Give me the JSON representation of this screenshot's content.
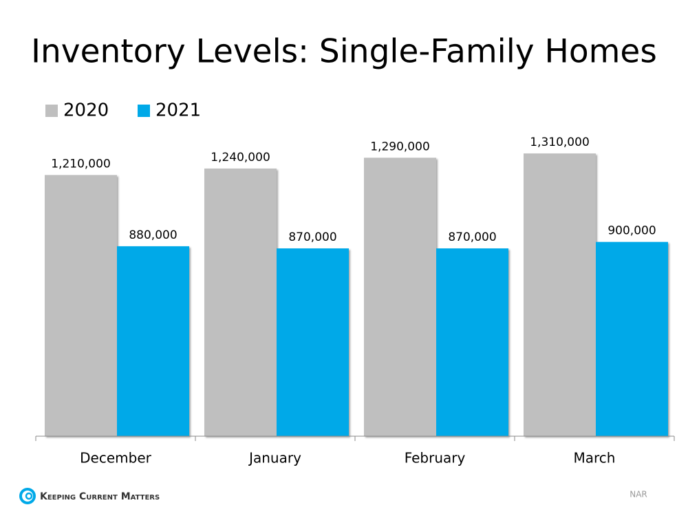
{
  "chart_data": {
    "type": "bar",
    "title": "Inventory Levels: Single-Family Homes",
    "categories": [
      "December",
      "January",
      "February",
      "March"
    ],
    "series": [
      {
        "name": "2020",
        "color": "#bfbfbf",
        "values": [
          1210000,
          1240000,
          1290000,
          1310000
        ],
        "value_labels": [
          "1,210,000",
          "1,240,000",
          "1,290,000",
          "1,310,000"
        ]
      },
      {
        "name": "2021",
        "color": "#00a9e8",
        "values": [
          880000,
          870000,
          870000,
          900000
        ],
        "value_labels": [
          "880,000",
          "870,000",
          "870,000",
          "900,000"
        ]
      }
    ],
    "legend": "top-left",
    "source": "NAR",
    "brand": "Keeping Current Matters"
  }
}
